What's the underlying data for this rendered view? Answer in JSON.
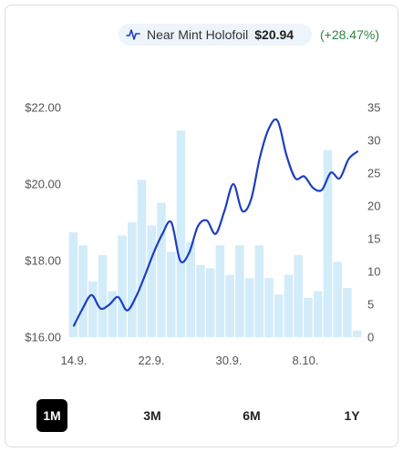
{
  "legend": {
    "icon": "price-line-icon",
    "name": "Near Mint Holofoil",
    "price": "$20.94",
    "change": "(+28.47%)",
    "change_color": "#2e8540"
  },
  "range_buttons": [
    {
      "label": "1M",
      "active": true
    },
    {
      "label": "3M",
      "active": false
    },
    {
      "label": "6M",
      "active": false
    },
    {
      "label": "1Y",
      "active": false
    }
  ],
  "chart_data": {
    "type": "bar+line",
    "colors": {
      "line": "#1d3fbf",
      "bars": "#d2ecfa"
    },
    "x_tick_labels": [
      "14.9.",
      "22.9.",
      "30.9.",
      "8.10."
    ],
    "y_left": {
      "ticks": [
        "$22.00",
        "$20.00",
        "$18.00",
        "$16.00"
      ],
      "range": [
        16,
        22
      ]
    },
    "y_right": {
      "ticks": [
        "35",
        "30",
        "25",
        "20",
        "15",
        "10",
        "5",
        "0"
      ],
      "range": [
        0,
        35
      ]
    },
    "bar_values": [
      16,
      14,
      8.5,
      12.5,
      7,
      15.5,
      17.5,
      24,
      17,
      20.5,
      13,
      31.5,
      14.5,
      11,
      10.5,
      14,
      9.5,
      14,
      9,
      14,
      9,
      6.5,
      9.5,
      12.5,
      6,
      7,
      28.5,
      11.5,
      7.5,
      1
    ],
    "line_values": [
      16.3,
      16.75,
      17.1,
      16.75,
      16.85,
      17.05,
      16.7,
      17.05,
      17.6,
      18.2,
      18.7,
      19.0,
      18.0,
      18.2,
      18.9,
      19.05,
      18.7,
      19.3,
      20.0,
      19.3,
      19.6,
      20.7,
      21.45,
      21.65,
      20.75,
      20.15,
      20.2,
      19.9,
      19.85,
      20.3,
      20.15,
      20.65,
      20.85
    ],
    "grid": false,
    "legend_position": "top-right"
  }
}
